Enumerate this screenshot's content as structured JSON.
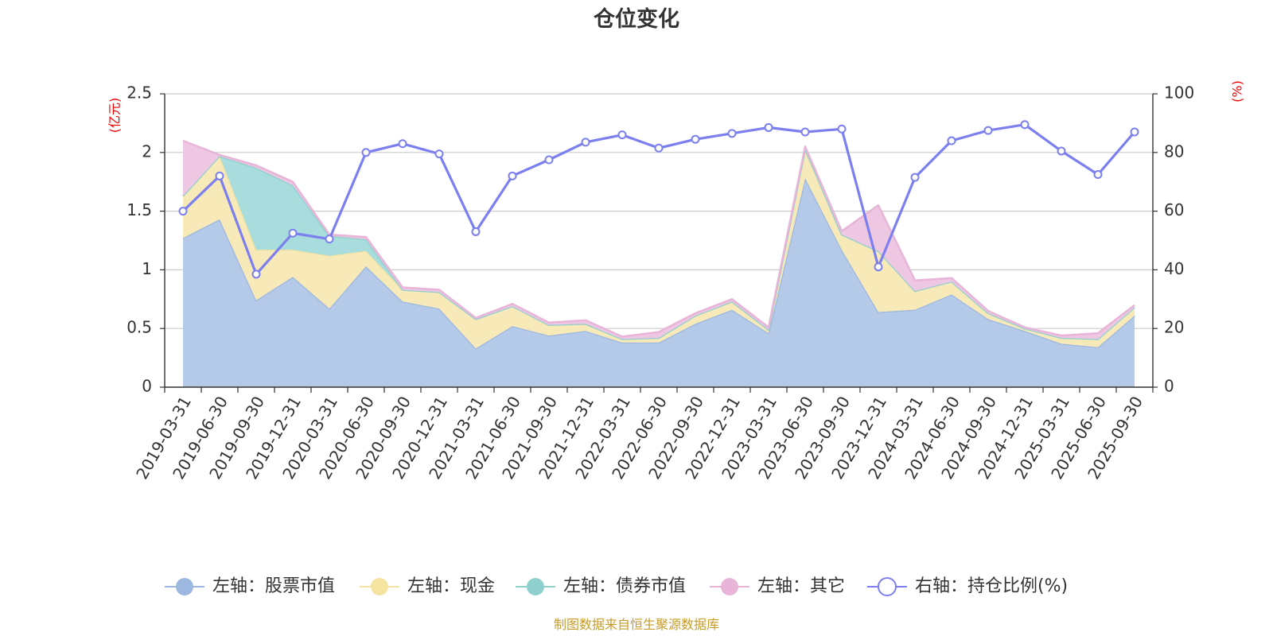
{
  "chart_data": {
    "type": "area",
    "title": "仓位变化",
    "left_axis": {
      "unit_label": "(亿元)",
      "ylim": [
        0,
        2.5
      ],
      "ticks": [
        "0",
        "0.5",
        "1",
        "1.5",
        "2",
        "2.5"
      ]
    },
    "right_axis": {
      "unit_label": "(%)",
      "ylim": [
        0,
        100
      ],
      "ticks": [
        "0",
        "20",
        "40",
        "60",
        "80",
        "100"
      ]
    },
    "categories": [
      "2019-03-31",
      "2019-06-30",
      "2019-09-30",
      "2019-12-31",
      "2020-03-31",
      "2020-06-30",
      "2020-09-30",
      "2020-12-31",
      "2021-03-31",
      "2021-06-30",
      "2021-09-30",
      "2021-12-31",
      "2022-03-31",
      "2022-06-30",
      "2022-09-30",
      "2022-12-31",
      "2023-03-31",
      "2023-06-30",
      "2023-09-30",
      "2023-12-31",
      "2024-03-31",
      "2024-06-30",
      "2024-09-30",
      "2024-12-31",
      "2025-03-31",
      "2025-06-30",
      "2025-09-30"
    ],
    "stack_series": [
      {
        "name": "左轴：股票市值",
        "color": "#9cb8e0",
        "fill": "#b5c9e8",
        "values": [
          1.27,
          1.43,
          0.74,
          0.94,
          0.67,
          1.03,
          0.73,
          0.67,
          0.33,
          0.52,
          0.44,
          0.48,
          0.38,
          0.38,
          0.54,
          0.66,
          0.46,
          1.78,
          1.17,
          0.64,
          0.66,
          0.79,
          0.58,
          0.48,
          0.37,
          0.34,
          0.61
        ]
      },
      {
        "name": "左轴：现金",
        "color": "#f5e3a0",
        "fill": "#f8e9b8",
        "values": [
          0.36,
          0.54,
          0.43,
          0.23,
          0.45,
          0.13,
          0.1,
          0.14,
          0.25,
          0.17,
          0.09,
          0.06,
          0.03,
          0.04,
          0.07,
          0.07,
          0.03,
          0.25,
          0.13,
          0.52,
          0.16,
          0.11,
          0.05,
          0.02,
          0.05,
          0.07,
          0.07
        ]
      },
      {
        "name": "左轴：债券市值",
        "color": "#8fd0cf",
        "fill": "#a9dcdc",
        "values": [
          0,
          0,
          0.7,
          0.55,
          0.17,
          0.1,
          0,
          0,
          0,
          0,
          0,
          0,
          0,
          0,
          0,
          0,
          0,
          0,
          0,
          0,
          0,
          0,
          0,
          0,
          0,
          0,
          0
        ]
      },
      {
        "name": "左轴：其它",
        "color": "#e8b4d8",
        "fill": "#eec8e2",
        "values": [
          0.47,
          0.01,
          0.02,
          0.03,
          0.01,
          0.02,
          0.02,
          0.02,
          0.01,
          0.02,
          0.02,
          0.03,
          0.02,
          0.05,
          0.02,
          0.02,
          0.02,
          0.02,
          0.03,
          0.39,
          0.09,
          0.03,
          0.02,
          0.01,
          0.02,
          0.05,
          0.02
        ]
      }
    ],
    "line_series": {
      "name": "右轴：持仓比例(%)",
      "color": "#7b7fef",
      "axis": "right",
      "values": [
        60,
        72,
        38.5,
        52.5,
        50.5,
        80,
        83,
        79.5,
        53,
        72,
        77.5,
        83.5,
        86,
        81.5,
        84.5,
        86.5,
        88.5,
        87,
        88,
        41,
        71.5,
        84,
        87.5,
        89.5,
        80.5,
        72.5,
        87
      ]
    },
    "grid": true,
    "legend_position": "bottom"
  },
  "source_text": "制图数据来自恒生聚源数据库"
}
